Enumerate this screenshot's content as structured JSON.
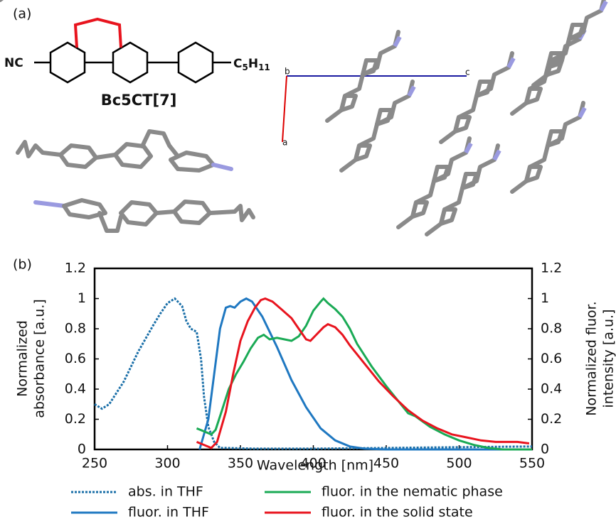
{
  "panel_a": {
    "label": "(a)",
    "compound": "Bc5CT[7]",
    "left_group": "NC",
    "right_group": [
      "C",
      "5",
      "H",
      "11"
    ],
    "cell_axes": [
      "b",
      "c",
      "a"
    ]
  },
  "chart_data": {
    "type": "line",
    "panel_label": "(b)",
    "xlabel": "Wavelength [nm]",
    "ylabel": [
      "Normalized",
      "absorbance [a.u.]"
    ],
    "y2label": [
      "Normalized fluor.",
      "intensity [a.u.]"
    ],
    "xlim": [
      250,
      550
    ],
    "xticks": [
      250,
      300,
      350,
      400,
      450,
      500,
      550
    ],
    "ylim": [
      0,
      1.2
    ],
    "yticks": [
      0,
      0.2,
      0.4,
      0.6,
      0.8,
      1,
      1.2
    ],
    "y2lim": [
      0,
      1.2
    ],
    "y2ticks": [
      0,
      0.2,
      0.4,
      0.6,
      0.8,
      1,
      1.2
    ],
    "series": [
      {
        "name": "abs. in THF",
        "color": "#1a6fa8",
        "style": "dotted",
        "x": [
          250,
          255,
          260,
          270,
          280,
          290,
          295,
          300,
          305,
          310,
          313,
          316,
          320,
          323,
          325,
          328,
          332,
          336,
          340,
          360,
          400,
          450,
          500,
          550
        ],
        "values": [
          0.3,
          0.27,
          0.3,
          0.45,
          0.65,
          0.82,
          0.9,
          0.97,
          1.0,
          0.95,
          0.85,
          0.8,
          0.78,
          0.6,
          0.35,
          0.15,
          0.05,
          0.01,
          0.01,
          0.005,
          0.005,
          0.01,
          0.015,
          0.02
        ]
      },
      {
        "name": "fluor. in THF",
        "color": "#1f78c1",
        "style": "solid",
        "axis": "y2",
        "x": [
          322,
          328,
          332,
          336,
          340,
          343,
          346,
          350,
          354,
          358,
          365,
          375,
          385,
          395,
          405,
          415,
          425,
          435,
          450,
          500,
          550
        ],
        "values": [
          0,
          0.2,
          0.5,
          0.8,
          0.94,
          0.95,
          0.94,
          0.98,
          1.0,
          0.98,
          0.88,
          0.68,
          0.46,
          0.28,
          0.14,
          0.06,
          0.02,
          0.005,
          0,
          0,
          0
        ]
      },
      {
        "name": "fluor. in the nematic phase",
        "color": "#1aaa55",
        "style": "solid",
        "axis": "y2",
        "x": [
          320,
          325,
          330,
          333,
          337,
          342,
          347,
          352,
          357,
          362,
          366,
          370,
          375,
          380,
          385,
          390,
          395,
          400,
          405,
          407,
          410,
          415,
          420,
          425,
          430,
          440,
          450,
          460,
          465,
          470,
          480,
          490,
          500,
          510,
          520,
          530,
          540,
          550
        ],
        "values": [
          0.14,
          0.12,
          0.1,
          0.13,
          0.25,
          0.4,
          0.5,
          0.58,
          0.67,
          0.74,
          0.76,
          0.73,
          0.74,
          0.73,
          0.72,
          0.75,
          0.82,
          0.92,
          0.98,
          1.0,
          0.97,
          0.93,
          0.88,
          0.8,
          0.7,
          0.55,
          0.42,
          0.3,
          0.24,
          0.22,
          0.15,
          0.1,
          0.06,
          0.03,
          0.01,
          0,
          0,
          0
        ]
      },
      {
        "name": "fluor. in the solid state",
        "color": "#e8141e",
        "style": "solid",
        "axis": "y2",
        "x": [
          320,
          325,
          330,
          334,
          340,
          345,
          350,
          355,
          360,
          364,
          367,
          372,
          378,
          385,
          390,
          395,
          398,
          402,
          407,
          410,
          415,
          420,
          425,
          435,
          445,
          455,
          465,
          475,
          485,
          495,
          505,
          515,
          525,
          540,
          548
        ],
        "values": [
          0.05,
          0.03,
          0.01,
          0.05,
          0.25,
          0.5,
          0.72,
          0.85,
          0.94,
          0.99,
          1.0,
          0.98,
          0.93,
          0.87,
          0.8,
          0.73,
          0.72,
          0.76,
          0.81,
          0.83,
          0.81,
          0.76,
          0.69,
          0.57,
          0.45,
          0.35,
          0.26,
          0.19,
          0.14,
          0.1,
          0.08,
          0.06,
          0.05,
          0.05,
          0.04
        ]
      }
    ]
  }
}
